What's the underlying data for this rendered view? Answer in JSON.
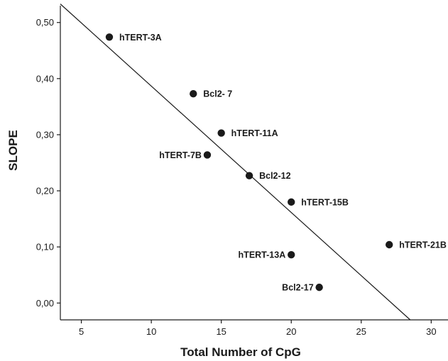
{
  "chart_data": {
    "type": "scatter",
    "xlabel": "Total Number of CpG",
    "ylabel": "SLOPE",
    "xlim": [
      3.5,
      31.2
    ],
    "ylim": [
      -0.03,
      0.53
    ],
    "x_ticks": [
      5,
      10,
      15,
      20,
      25,
      30
    ],
    "x_tick_labels": [
      "5",
      "10",
      "15",
      "20",
      "25",
      "30"
    ],
    "y_ticks": [
      0.0,
      0.1,
      0.2,
      0.3,
      0.4,
      0.5
    ],
    "y_tick_labels": [
      "0,00",
      "0,10",
      "0,20",
      "0,30",
      "0,40",
      "0,50"
    ],
    "grid": false,
    "points": [
      {
        "label": "hTERT-3A",
        "x": 7,
        "y": 0.474,
        "label_side": "right"
      },
      {
        "label": "Bcl2- 7",
        "x": 13,
        "y": 0.373,
        "label_side": "right"
      },
      {
        "label": "hTERT-11A",
        "x": 15,
        "y": 0.303,
        "label_side": "right"
      },
      {
        "label": "hTERT-7B",
        "x": 14,
        "y": 0.264,
        "label_side": "left"
      },
      {
        "label": "Bcl2-12",
        "x": 17,
        "y": 0.227,
        "label_side": "right"
      },
      {
        "label": "hTERT-15B",
        "x": 20,
        "y": 0.18,
        "label_side": "right"
      },
      {
        "label": "hTERT-13A",
        "x": 20,
        "y": 0.086,
        "label_side": "left"
      },
      {
        "label": "hTERT-21B",
        "x": 27,
        "y": 0.104,
        "label_side": "right"
      },
      {
        "label": "Bcl2-17",
        "x": 22,
        "y": 0.028,
        "label_side": "left"
      }
    ],
    "fit_line": {
      "x1": 3.5,
      "y1": 0.533,
      "x2": 28.5,
      "y2": -0.03
    },
    "colors": {
      "point": "#1a1a1a",
      "line": "#1a1a1a",
      "axis": "#1a1a1a"
    }
  }
}
